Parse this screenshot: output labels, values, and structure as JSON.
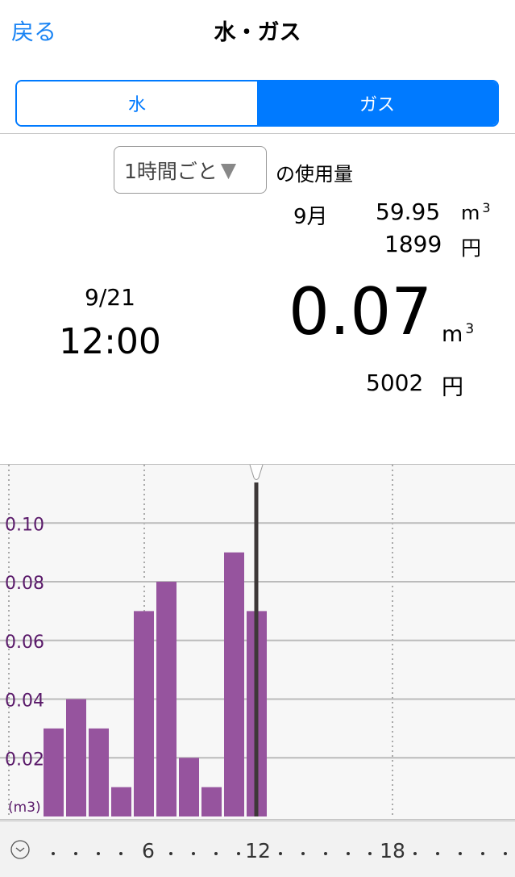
{
  "header": {
    "back_label": "戻る",
    "title": "水・ガス"
  },
  "segments": [
    {
      "label": "水",
      "selected": false
    },
    {
      "label": "ガス",
      "selected": true
    }
  ],
  "period_select": {
    "value": "1時間ごと",
    "icon": "triangle-down-icon"
  },
  "usage_label": "の使用量",
  "monthly": {
    "month": "9月",
    "volume": "59.95",
    "unit": "m",
    "unit_sup": "3",
    "cost": "1899",
    "cost_unit": "円"
  },
  "selected": {
    "date": "9/21",
    "time": "12:00",
    "volume": "0.07",
    "unit": "m",
    "unit_sup": "3",
    "cost": "5002",
    "cost_unit": "円"
  },
  "colors": {
    "accent": "#007aff",
    "bar": "#96549e",
    "axis_label": "#5a1a6a",
    "cursor": "#3d3838"
  },
  "chart_data": {
    "type": "bar",
    "x": [
      1,
      2,
      3,
      4,
      5,
      6,
      7,
      8,
      9,
      10
    ],
    "values": [
      0.03,
      0.04,
      0.03,
      0.01,
      0.07,
      0.08,
      0.02,
      0.01,
      0.09,
      0.07
    ],
    "ylabel": "(m3)",
    "yticks": [
      "0.02",
      "0.04",
      "0.06",
      "0.08",
      "0.10"
    ],
    "xticks": [
      "6",
      "12",
      "18"
    ],
    "x_icon": "clock-icon",
    "selected_x": 10,
    "grid": true
  }
}
